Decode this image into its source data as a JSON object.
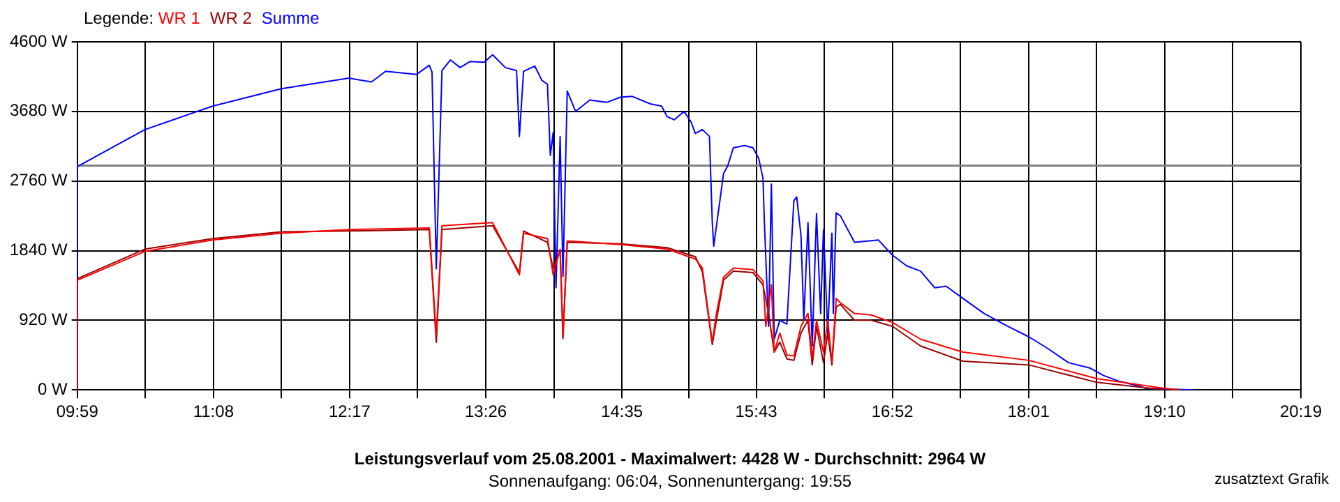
{
  "chart_data": {
    "type": "line",
    "title": "Leistungsverlauf vom 25.08.2001 - Maximalwert: 4428 W - Durchschnitt: 2964 W",
    "subtitle": "Sonnenaufgang: 06:04, Sonnenuntergang: 19:55",
    "annotations": [
      "zusatztext Grafik"
    ],
    "legend_title": "Legende:",
    "legend": "top left",
    "grid": true,
    "marker": "none",
    "line_style": "solid",
    "xlim": [
      9.983,
      20.317
    ],
    "xticks": [
      {
        "value": 9.983,
        "label": "09:59"
      },
      {
        "value": 10.558,
        "label": null
      },
      {
        "value": 11.133,
        "label": "11:08"
      },
      {
        "value": 11.708,
        "label": null
      },
      {
        "value": 12.283,
        "label": "12:17"
      },
      {
        "value": 12.858,
        "label": null
      },
      {
        "value": 13.433,
        "label": "13:26"
      },
      {
        "value": 14.008,
        "label": null
      },
      {
        "value": 14.583,
        "label": "14:35"
      },
      {
        "value": 15.15,
        "label": null
      },
      {
        "value": 15.717,
        "label": "15:43"
      },
      {
        "value": 16.292,
        "label": null
      },
      {
        "value": 16.867,
        "label": "16:52"
      },
      {
        "value": 17.442,
        "label": null
      },
      {
        "value": 18.017,
        "label": "18:01"
      },
      {
        "value": 18.592,
        "label": null
      },
      {
        "value": 19.167,
        "label": "19:10"
      },
      {
        "value": 19.742,
        "label": null
      },
      {
        "value": 20.317,
        "label": "20:19"
      }
    ],
    "ylim": [
      0,
      4600
    ],
    "yticks": [
      {
        "value": 0,
        "label": "0 W"
      },
      {
        "value": 920,
        "label": "920 W"
      },
      {
        "value": 1840,
        "label": "1840 W"
      },
      {
        "value": 2760,
        "label": "2760 W"
      },
      {
        "value": 3680,
        "label": "3680 W"
      },
      {
        "value": 4600,
        "label": "4600 W"
      }
    ],
    "ref_lines": [
      {
        "axis": "y",
        "value": 2964,
        "color": "#808080"
      }
    ],
    "series": [
      {
        "name": "WR 1",
        "color": "#ff0000",
        "x": [
          9.983,
          9.984,
          10.554,
          11.125,
          11.707,
          12.278,
          12.956,
          13.015,
          13.063,
          13.491,
          13.717,
          13.752,
          13.954,
          14.002,
          14.061,
          14.085,
          14.121,
          14.573,
          14.965,
          15.203,
          15.262,
          15.346,
          15.381,
          15.441,
          15.524,
          15.69,
          15.774,
          15.798,
          15.845,
          15.869,
          15.916,
          15.976,
          16.035,
          16.095,
          16.154,
          16.19,
          16.226,
          16.285,
          16.321,
          16.356,
          16.392,
          16.428,
          16.547,
          16.689,
          16.868,
          17.105,
          17.462,
          18.021,
          18.592,
          19.163,
          19.305
        ],
        "values": [
          0,
          1450,
          1830,
          1980,
          2070,
          2120,
          2140,
          720,
          2170,
          2210,
          1520,
          2070,
          2000,
          1520,
          1860,
          720,
          1970,
          1920,
          1860,
          1730,
          1610,
          630,
          1010,
          1490,
          1610,
          1590,
          1440,
          840,
          1390,
          500,
          750,
          460,
          450,
          840,
          1010,
          410,
          920,
          500,
          920,
          360,
          1210,
          1150,
          1010,
          990,
          890,
          670,
          500,
          390,
          150,
          20,
          0
        ]
      },
      {
        "name": "WR 2",
        "color": "#990000",
        "x": [
          9.983,
          9.984,
          10.554,
          11.125,
          11.707,
          12.278,
          12.956,
          13.015,
          13.063,
          13.491,
          13.717,
          13.752,
          13.954,
          14.002,
          14.061,
          14.085,
          14.121,
          14.573,
          14.965,
          15.203,
          15.262,
          15.346,
          15.381,
          15.441,
          15.524,
          15.69,
          15.774,
          15.821,
          15.869,
          15.916,
          15.976,
          16.035,
          16.095,
          16.154,
          16.19,
          16.226,
          16.285,
          16.321,
          16.356,
          16.392,
          16.428,
          16.547,
          16.689,
          16.868,
          17.105,
          17.462,
          18.021,
          18.592,
          19.163
        ],
        "values": [
          0,
          1470,
          1860,
          2000,
          2090,
          2100,
          2120,
          630,
          2120,
          2170,
          1550,
          2100,
          1950,
          1610,
          1830,
          680,
          1950,
          1930,
          1880,
          1760,
          1560,
          600,
          920,
          1450,
          1570,
          1550,
          1390,
          1010,
          500,
          630,
          410,
          390,
          750,
          920,
          330,
          840,
          360,
          750,
          330,
          1100,
          1130,
          920,
          920,
          840,
          580,
          380,
          330,
          100,
          0
        ]
      },
      {
        "name": "Summe",
        "color": "#0000ff",
        "x": [
          9.983,
          9.984,
          9.995,
          10.554,
          11.125,
          11.707,
          12.278,
          12.468,
          12.587,
          12.849,
          12.956,
          12.979,
          13.015,
          13.063,
          13.134,
          13.217,
          13.3,
          13.419,
          13.491,
          13.598,
          13.693,
          13.717,
          13.752,
          13.847,
          13.907,
          13.954,
          13.978,
          14.002,
          14.026,
          14.061,
          14.085,
          14.121,
          14.192,
          14.311,
          14.454,
          14.573,
          14.668,
          14.823,
          14.918,
          14.965,
          15.025,
          15.108,
          15.167,
          15.203,
          15.262,
          15.322,
          15.346,
          15.358,
          15.441,
          15.476,
          15.524,
          15.619,
          15.69,
          15.738,
          15.774,
          15.786,
          15.821,
          15.845,
          15.869,
          15.916,
          15.976,
          16.035,
          16.059,
          16.095,
          16.119,
          16.154,
          16.19,
          16.226,
          16.261,
          16.285,
          16.321,
          16.356,
          16.368,
          16.392,
          16.428,
          16.547,
          16.749,
          16.868,
          16.987,
          17.105,
          17.224,
          17.32,
          17.462,
          17.641,
          17.843,
          18.021,
          18.176,
          18.354,
          18.532,
          18.651,
          18.77,
          18.949,
          19.008,
          19.412
        ],
        "values": [
          0,
          2950,
          2960,
          3440,
          3750,
          3980,
          4120,
          4070,
          4210,
          4170,
          4290,
          4200,
          1600,
          4220,
          4360,
          4260,
          4340,
          4330,
          4430,
          4260,
          4220,
          3350,
          4210,
          4280,
          4090,
          4040,
          3100,
          3400,
          1350,
          3350,
          1500,
          3950,
          3680,
          3830,
          3800,
          3870,
          3880,
          3780,
          3750,
          3610,
          3570,
          3680,
          3540,
          3390,
          3440,
          3350,
          2210,
          1900,
          2860,
          2960,
          3200,
          3230,
          3200,
          3060,
          2800,
          2210,
          840,
          2720,
          670,
          920,
          870,
          2500,
          2550,
          2040,
          920,
          2210,
          580,
          2330,
          1010,
          2120,
          750,
          2070,
          1010,
          2340,
          2300,
          1950,
          1980,
          1780,
          1640,
          1570,
          1350,
          1370,
          1210,
          1010,
          840,
          700,
          550,
          360,
          290,
          190,
          120,
          50,
          20,
          0
        ]
      }
    ]
  }
}
